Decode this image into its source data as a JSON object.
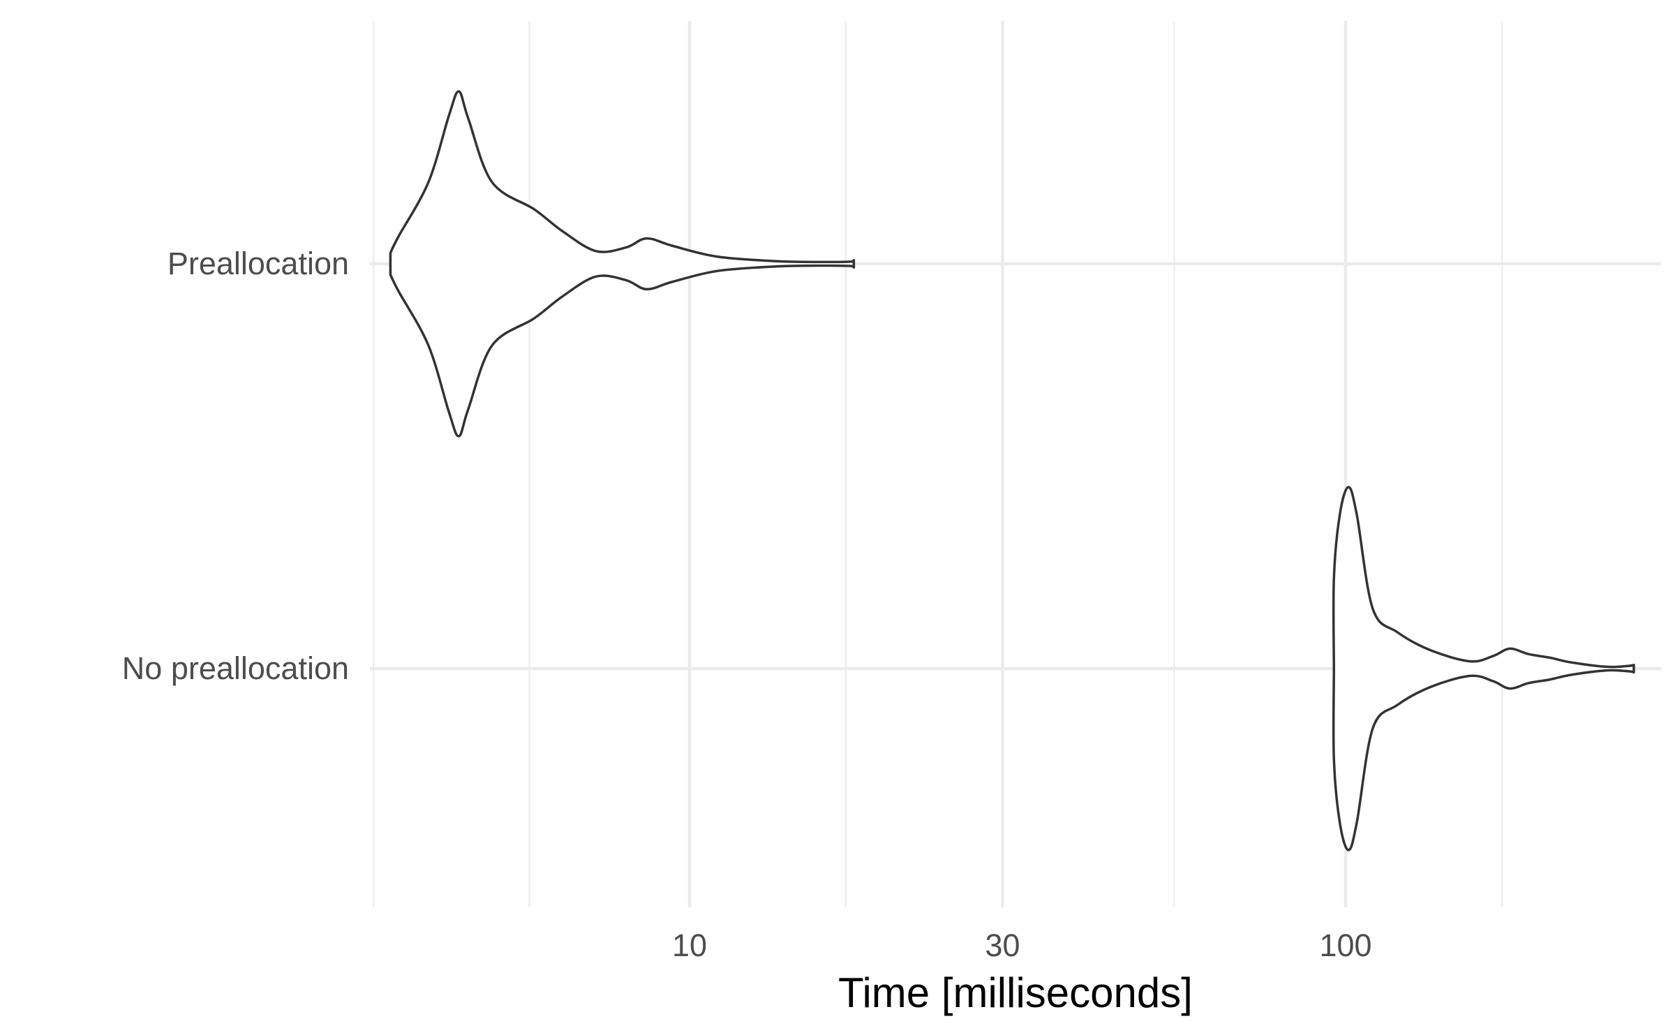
{
  "chart_data": {
    "type": "violin",
    "orientation": "horizontal",
    "xlabel": "Time [milliseconds]",
    "ylabel": "",
    "x_scale": "log10",
    "xlim": [
      2.0,
      400.0
    ],
    "x_ticks": [
      10,
      30,
      100
    ],
    "x_tick_labels": [
      "10",
      "30",
      "100"
    ],
    "x_minor_ticks": [
      3.3,
      5.7,
      17.3,
      54.8,
      173.2
    ],
    "categories": [
      "Preallocation",
      "No preallocation"
    ],
    "grid": true,
    "series": [
      {
        "name": "Preallocation",
        "profile": [
          {
            "x": 3.5,
            "w": 0.06
          },
          {
            "x": 3.6,
            "w": 0.15
          },
          {
            "x": 4.0,
            "w": 0.45
          },
          {
            "x": 4.3,
            "w": 0.82
          },
          {
            "x": 4.45,
            "w": 0.95
          },
          {
            "x": 4.6,
            "w": 0.8
          },
          {
            "x": 5.0,
            "w": 0.45
          },
          {
            "x": 5.8,
            "w": 0.3
          },
          {
            "x": 6.4,
            "w": 0.18
          },
          {
            "x": 7.2,
            "w": 0.07
          },
          {
            "x": 8.0,
            "w": 0.09
          },
          {
            "x": 8.6,
            "w": 0.14
          },
          {
            "x": 9.4,
            "w": 0.1
          },
          {
            "x": 11.0,
            "w": 0.04
          },
          {
            "x": 13.5,
            "w": 0.015
          },
          {
            "x": 16.0,
            "w": 0.01
          },
          {
            "x": 17.6,
            "w": 0.012
          },
          {
            "x": 17.8,
            "w": 0.02
          }
        ]
      },
      {
        "name": "No preallocation",
        "profile": [
          {
            "x": 96,
            "w": 0.0
          },
          {
            "x": 96,
            "w": 0.5
          },
          {
            "x": 98,
            "w": 0.85
          },
          {
            "x": 101,
            "w": 1.0
          },
          {
            "x": 104,
            "w": 0.85
          },
          {
            "x": 110,
            "w": 0.33
          },
          {
            "x": 120,
            "w": 0.2
          },
          {
            "x": 135,
            "w": 0.1
          },
          {
            "x": 155,
            "w": 0.04
          },
          {
            "x": 168,
            "w": 0.07
          },
          {
            "x": 178,
            "w": 0.11
          },
          {
            "x": 190,
            "w": 0.08
          },
          {
            "x": 205,
            "w": 0.06
          },
          {
            "x": 220,
            "w": 0.035
          },
          {
            "x": 250,
            "w": 0.01
          },
          {
            "x": 270,
            "w": 0.015
          },
          {
            "x": 275,
            "w": 0.02
          }
        ]
      }
    ]
  }
}
